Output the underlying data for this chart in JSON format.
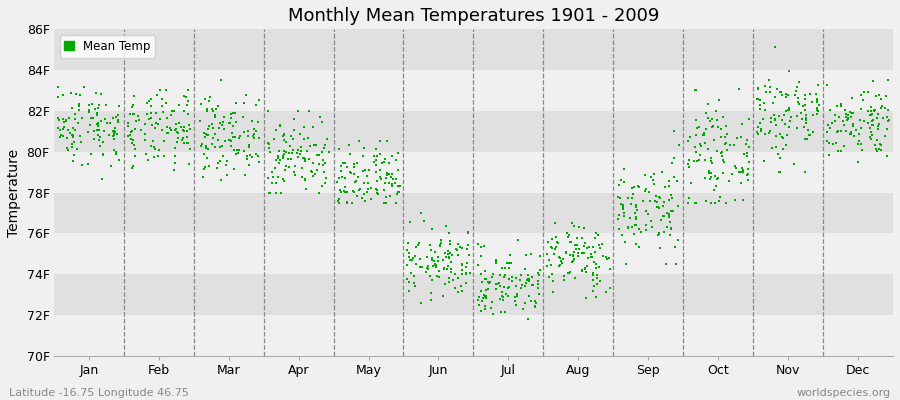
{
  "title": "Monthly Mean Temperatures 1901 - 2009",
  "ylabel": "Temperature",
  "ylim": [
    70,
    86
  ],
  "yticks": [
    70,
    72,
    74,
    76,
    78,
    80,
    82,
    84,
    86
  ],
  "ytick_labels": [
    "70F",
    "72F",
    "74F",
    "76F",
    "78F",
    "80F",
    "82F",
    "84F",
    "86F"
  ],
  "months": [
    "Jan",
    "Feb",
    "Mar",
    "Apr",
    "May",
    "Jun",
    "Jul",
    "Aug",
    "Sep",
    "Oct",
    "Nov",
    "Dec"
  ],
  "month_means": [
    81.3,
    81.0,
    80.8,
    79.8,
    78.5,
    74.5,
    73.5,
    74.8,
    77.2,
    79.8,
    81.8,
    81.5
  ],
  "month_stds": [
    1.0,
    0.95,
    0.95,
    1.0,
    0.9,
    0.85,
    0.85,
    0.85,
    1.2,
    1.2,
    1.2,
    0.9
  ],
  "month_mins": [
    78.5,
    78.5,
    78.0,
    78.0,
    77.5,
    72.0,
    70.5,
    72.5,
    74.5,
    77.5,
    79.0,
    79.5
  ],
  "month_maxs": [
    83.5,
    83.0,
    83.5,
    82.0,
    80.5,
    77.0,
    76.5,
    76.5,
    83.0,
    84.5,
    85.5,
    83.5
  ],
  "n_years": 109,
  "dot_color": "#00aa00",
  "dot_size": 3,
  "bg_color_light": "#f0f0f0",
  "bg_color_dark": "#e0e0e0",
  "plot_bg": "#f5f5f5",
  "legend_label": "Mean Temp",
  "bottom_left_text": "Latitude -16.75 Longitude 46.75",
  "bottom_right_text": "worldspecies.org",
  "seed": 42
}
